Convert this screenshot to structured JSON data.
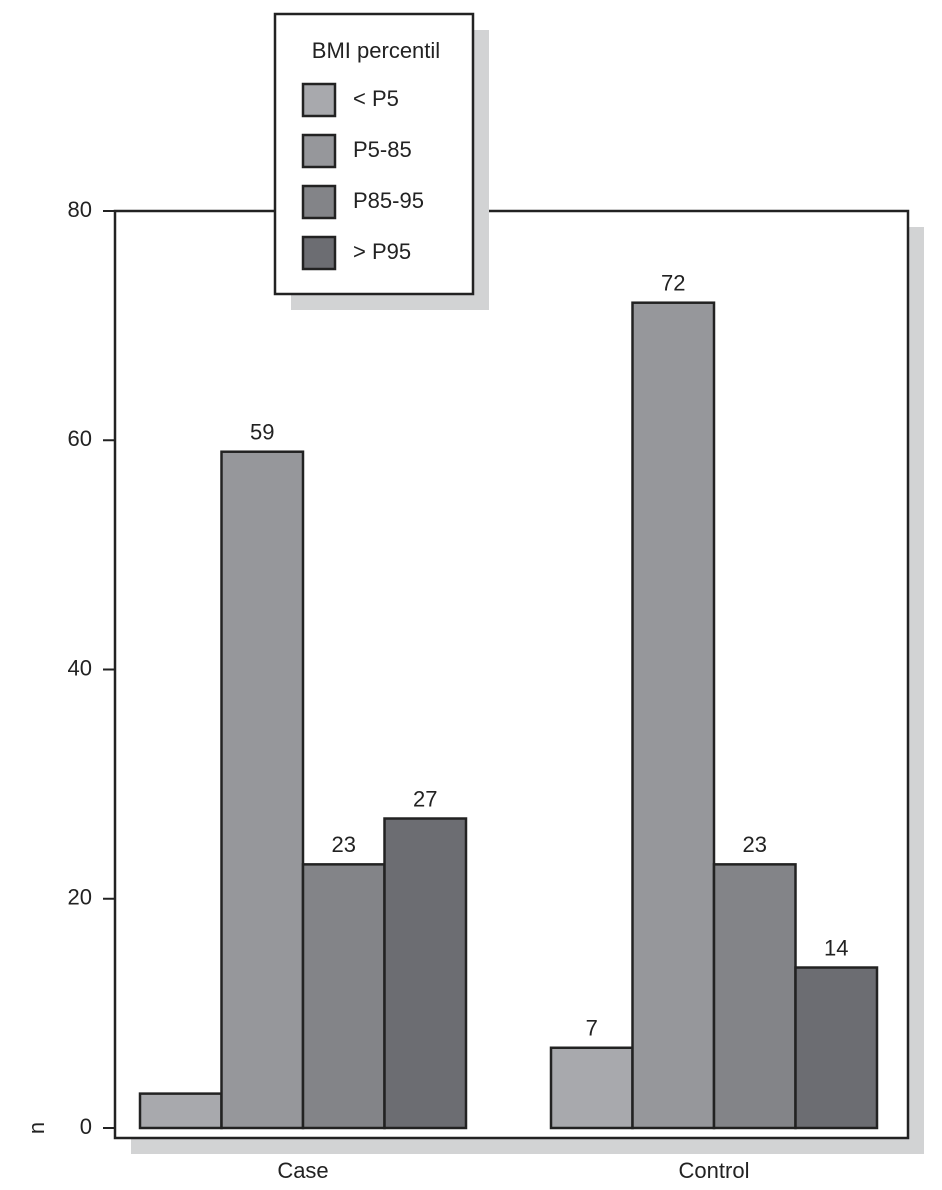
{
  "chart_data": {
    "type": "bar",
    "y_label": "n",
    "categories": [
      "Case",
      "Control"
    ],
    "legend_title": "BMI percentil",
    "series": [
      {
        "name": "< P5",
        "color": "#a8a9ad",
        "values": [
          3,
          7
        ],
        "value_labels": [
          null,
          "7"
        ]
      },
      {
        "name": "P5-85",
        "color": "#96979b",
        "values": [
          59,
          72
        ],
        "value_labels": [
          "59",
          "72"
        ]
      },
      {
        "name": "P85-95",
        "color": "#838488",
        "values": [
          23,
          23
        ],
        "value_labels": [
          "23",
          "23"
        ]
      },
      {
        "name": "> P95",
        "color": "#6c6d72",
        "values": [
          27,
          14
        ],
        "value_labels": [
          "27",
          "14"
        ]
      }
    ],
    "ylim": [
      0,
      80
    ],
    "yticks": [
      0,
      20,
      40,
      60,
      80
    ],
    "legend": "top-left"
  }
}
